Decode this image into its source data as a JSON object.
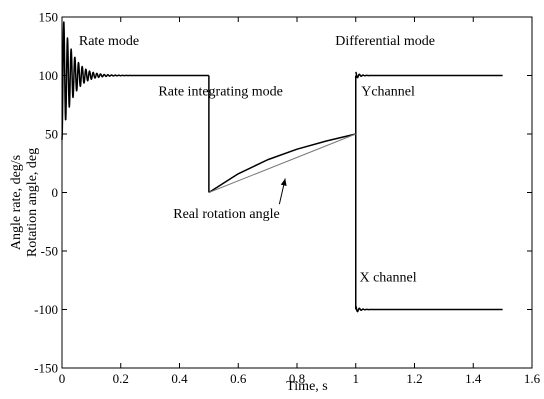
{
  "chart_data": {
    "type": "line",
    "xlabel": "Time, s",
    "ylabel_lines": [
      "Angle rate, deg/s",
      "Rotation angle, deg"
    ],
    "xlim": [
      0,
      1.6
    ],
    "ylim": [
      -150,
      150
    ],
    "x_ticks": [
      0,
      0.2,
      0.4,
      0.6,
      0.8,
      1,
      1.2,
      1.4,
      1.6
    ],
    "x_tick_labels": [
      "0",
      "0.2",
      "0.4",
      "0.6",
      "0.8",
      "1",
      "1.2",
      "1.4",
      "1.6"
    ],
    "y_ticks": [
      -150,
      -100,
      -50,
      0,
      50,
      100,
      150
    ],
    "y_tick_labels": [
      "-150",
      "-100",
      "-50",
      "0",
      "50",
      "100",
      "150"
    ],
    "grid": false,
    "annotations": [
      {
        "text": "Rate mode",
        "x": 0.16,
        "y": 126
      },
      {
        "text": "Differential mode",
        "x": 1.1,
        "y": 126
      },
      {
        "text": "Rate integrating mode",
        "x": 0.54,
        "y": 83
      },
      {
        "text": "Ychannel",
        "x": 1.11,
        "y": 83
      },
      {
        "text": "Real rotation angle",
        "x": 0.56,
        "y": -22
      },
      {
        "text": "X channel",
        "x": 1.11,
        "y": -76
      }
    ],
    "arrow": {
      "from": [
        0.74,
        -10
      ],
      "to": [
        0.76,
        12
      ]
    },
    "series": [
      {
        "role": "main",
        "segments": [
          {
            "kind": "damped_oscillation",
            "x_start": 0,
            "x_end": 0.5,
            "settle": 100,
            "start_value": 45,
            "amplitude": 55,
            "period": 0.0125,
            "decay": 0.035
          },
          {
            "kind": "points",
            "x": [
              0.5,
              0.5
            ],
            "y": [
              100,
              0
            ]
          },
          {
            "kind": "points",
            "x": [
              0.5,
              0.6,
              0.7,
              0.8,
              0.9,
              1.0
            ],
            "y": [
              0,
              16,
              28,
              37,
              44,
              50
            ]
          },
          {
            "kind": "points",
            "x": [
              1.0,
              1.0
            ],
            "y": [
              50,
              100
            ]
          },
          {
            "kind": "damped_oscillation",
            "x_start": 1.0,
            "x_end": 1.5,
            "settle": 100,
            "start_value": 100,
            "amplitude": 3,
            "period": 0.0125,
            "decay": 0.012
          },
          {
            "kind": "points",
            "x": [
              1.0,
              1.0
            ],
            "y": [
              50,
              -100
            ]
          },
          {
            "kind": "damped_oscillation",
            "x_start": 1.0,
            "x_end": 1.5,
            "settle": -100,
            "start_value": -100,
            "amplitude": 3,
            "period": 0.0125,
            "decay": 0.012
          }
        ]
      },
      {
        "role": "reference",
        "segments": [
          {
            "kind": "points",
            "x": [
              0.5,
              1.0
            ],
            "y": [
              0,
              50
            ]
          }
        ]
      }
    ],
    "colors": {
      "main": "#000000",
      "reference": "#777777",
      "axes": "#000000"
    }
  }
}
